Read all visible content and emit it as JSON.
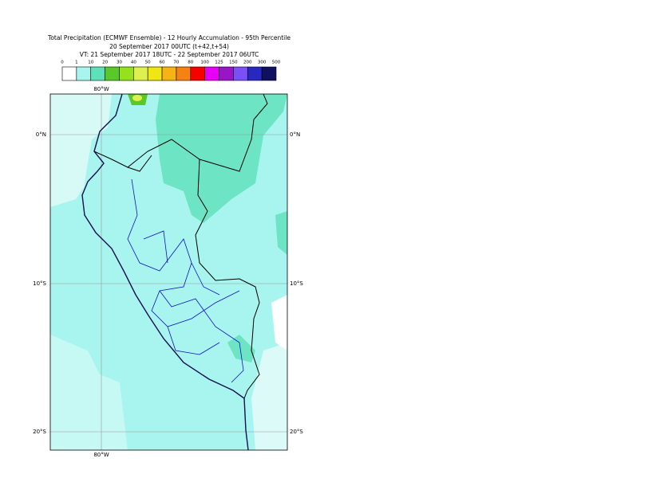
{
  "header": {
    "lines": [
      "Total Precipitation (ECMWF Ensemble) - 12 Hourly Accumulation - 95th Percentile",
      "20 September 2017 00UTC (t+42,t+54)",
      "VT: 21 September 2017 18UTC - 22 September 2017 06UTC"
    ]
  },
  "colorbar": {
    "labels": [
      0,
      1,
      10,
      20,
      30,
      40,
      50,
      60,
      70,
      80,
      100,
      125,
      150,
      200,
      300,
      500
    ],
    "colors": [
      "#ffffff",
      "#a8f4ee",
      "#5ee0b8",
      "#5ac828",
      "#96e01e",
      "#dcf050",
      "#f0e614",
      "#f6b414",
      "#f68214",
      "#f60000",
      "#e600f6",
      "#9a14c8",
      "#7a50f6",
      "#2828c0",
      "#101060"
    ]
  },
  "map": {
    "lon_labels": [
      "80°W"
    ],
    "lat_labels": [
      "0°N",
      "10°S",
      "20°S"
    ]
  }
}
